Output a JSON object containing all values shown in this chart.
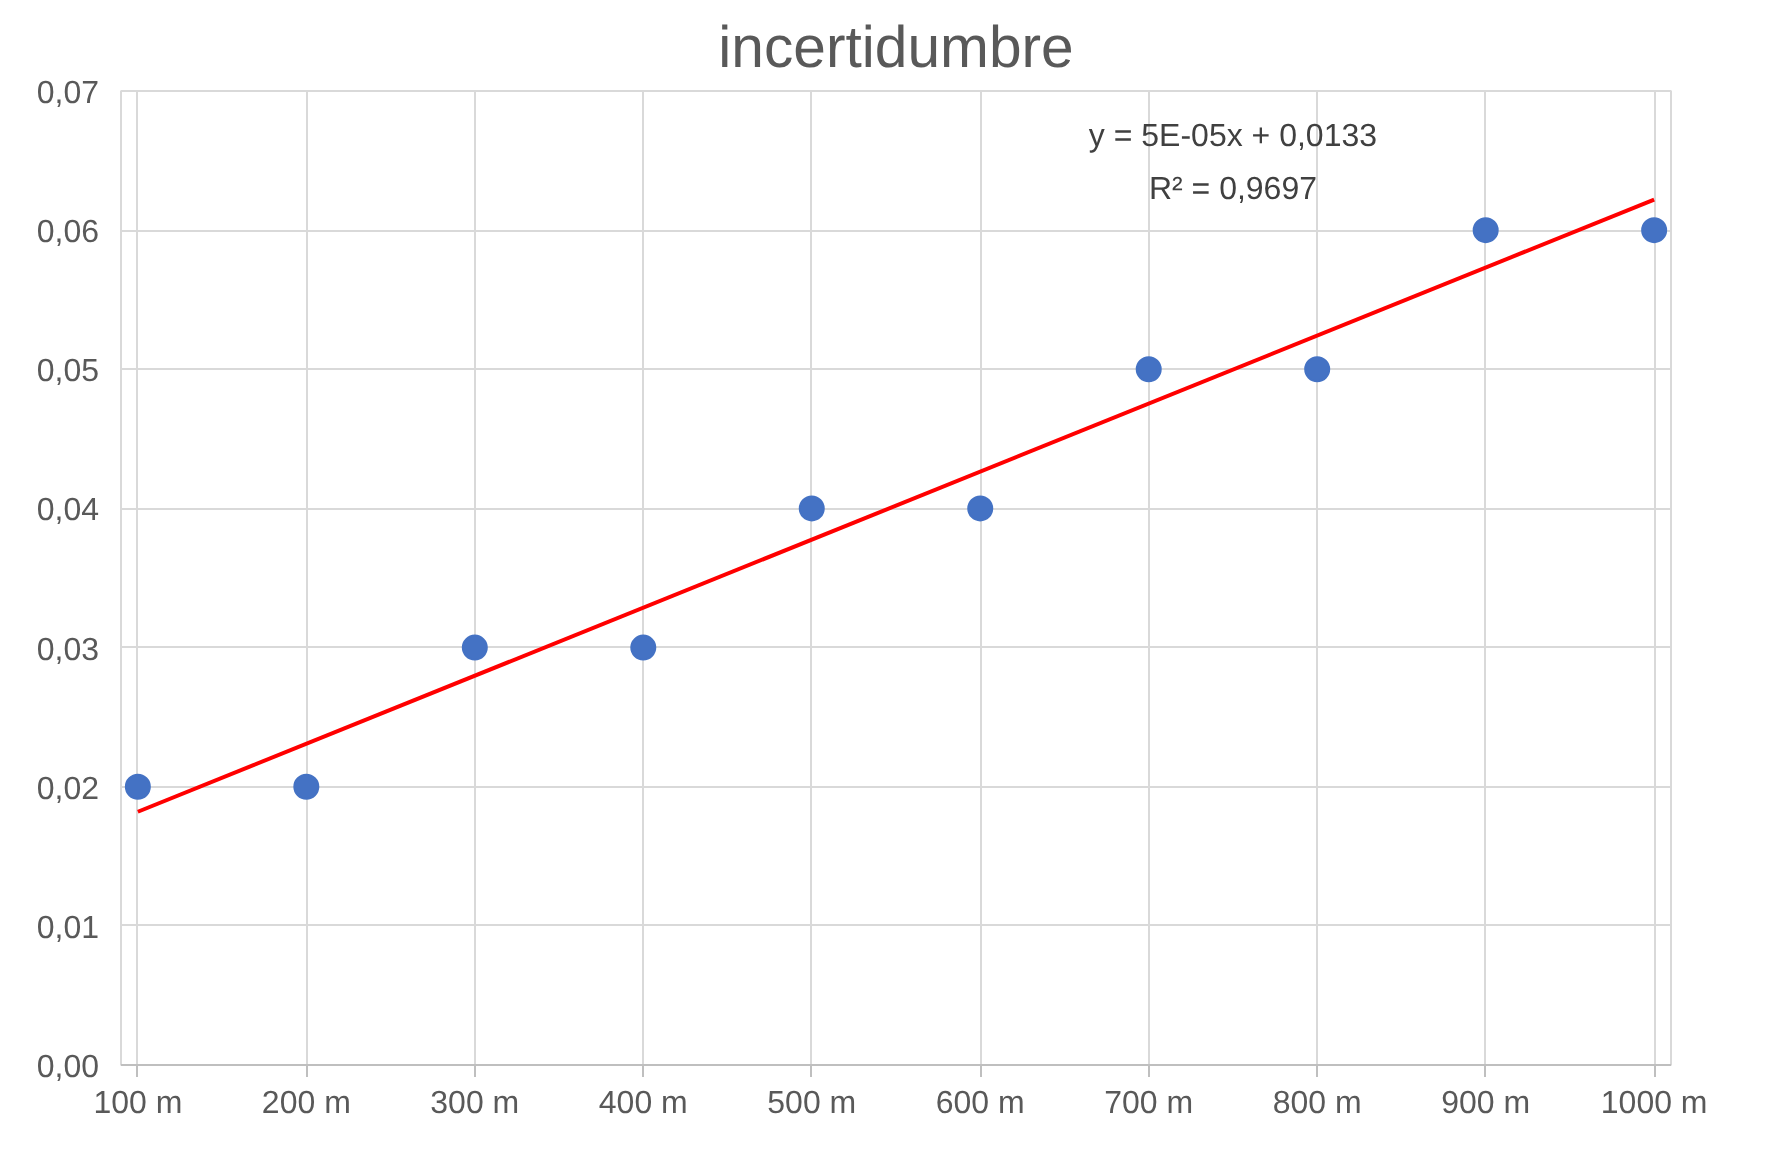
{
  "chart_data": {
    "type": "scatter",
    "title": "incertidumbre",
    "categories": [
      "100 m",
      "200 m",
      "300 m",
      "400 m",
      "500 m",
      "600 m",
      "700 m",
      "800 m",
      "900 m",
      "1000 m"
    ],
    "series": [
      {
        "color": "#4472c4",
        "marker": "circle",
        "values": [
          0.02,
          0.02,
          0.03,
          0.03,
          0.04,
          0.04,
          0.05,
          0.05,
          0.06,
          0.06
        ]
      },
      {
        "type": "line",
        "color": "#ff0000",
        "line_style": "solid",
        "x": [
          "100 m",
          "1000 m"
        ],
        "values": [
          0.0182,
          0.0622
        ]
      }
    ],
    "ylim": [
      0,
      0.07
    ],
    "yticks": [
      {
        "value": 0,
        "label": "0,00"
      },
      {
        "value": 0.01,
        "label": "0,01"
      },
      {
        "value": 0.02,
        "label": "0,02"
      },
      {
        "value": 0.03,
        "label": "0,03"
      },
      {
        "value": 0.04,
        "label": "0,04"
      },
      {
        "value": 0.05,
        "label": "0,05"
      },
      {
        "value": 0.06,
        "label": "0,06"
      },
      {
        "value": 0.07,
        "label": "0,07"
      }
    ],
    "annotations": [
      "y = 5E-05x + 0,0133",
      "R² = 0,9697"
    ],
    "grid": true
  }
}
